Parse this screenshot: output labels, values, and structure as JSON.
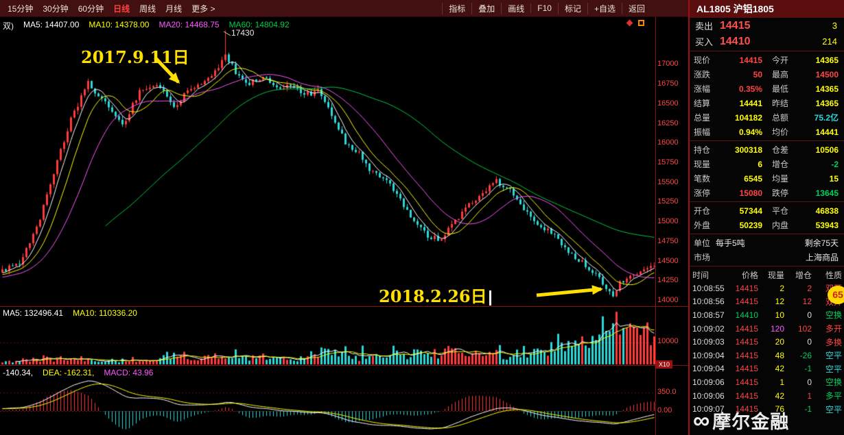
{
  "toolbar": {
    "timeframes": [
      {
        "label": "15分钟",
        "active": false
      },
      {
        "label": "30分钟",
        "active": false
      },
      {
        "label": "60分钟",
        "active": false
      },
      {
        "label": "日线",
        "active": true
      },
      {
        "label": "周线",
        "active": false
      },
      {
        "label": "月线",
        "active": false
      },
      {
        "label": "更多 >",
        "active": false
      }
    ],
    "actions": [
      "指标",
      "叠加",
      "画线",
      "F10",
      "标记",
      "+自选",
      "返回"
    ]
  },
  "main_chart": {
    "period_prefix": "双)",
    "ma_labels": [
      {
        "text": "MA5: 14407.00",
        "color": "#ffffff"
      },
      {
        "text": "MA10: 14378.00",
        "color": "#ffff00"
      },
      {
        "text": "MA20: 14468.75",
        "color": "#ff57ff"
      },
      {
        "text": "MA60: 14804.92",
        "color": "#00cc44"
      }
    ],
    "peak_label": "17430",
    "annotation_1": "2017.9.11日",
    "annotation_2": "2018.2.26日",
    "y_axis_labels": [
      "17000",
      "16750",
      "16500",
      "16250",
      "16000",
      "15750",
      "15500",
      "15250",
      "15000",
      "14750",
      "14500",
      "14250",
      "14000"
    ]
  },
  "volume_pane": {
    "ma_labels": [
      {
        "text": "MA5: 132496.41",
        "color": "#ffffff"
      },
      {
        "text": "MA10: 110336.20",
        "color": "#ffff00"
      }
    ],
    "axis_label": "10000",
    "multiplier_label": "X10"
  },
  "macd_pane": {
    "labels": [
      {
        "text": "-140.34,",
        "color": "#ffffff"
      },
      {
        "text": "DEA: -162.31,",
        "color": "#ffff00"
      },
      {
        "text": "MACD: 43.96",
        "color": "#ff57ff"
      }
    ],
    "axis_labels": [
      "350.0",
      "0.00"
    ]
  },
  "chart_data": {
    "type": "candlestick",
    "symbol": "AL1805",
    "period": "日线",
    "visible_candles": 191,
    "price_axis_range": [
      13900,
      17600
    ],
    "close_anchors": [
      [
        0,
        14350
      ],
      [
        5,
        14450
      ],
      [
        10,
        14900
      ],
      [
        15,
        15600
      ],
      [
        20,
        16300
      ],
      [
        25,
        16750
      ],
      [
        30,
        16500
      ],
      [
        35,
        16200
      ],
      [
        40,
        16650
      ],
      [
        45,
        16750
      ],
      [
        50,
        16450
      ],
      [
        55,
        16700
      ],
      [
        60,
        16800
      ],
      [
        65,
        17100
      ],
      [
        68,
        16900
      ],
      [
        72,
        16750
      ],
      [
        76,
        16850
      ],
      [
        80,
        16700
      ],
      [
        84,
        16750
      ],
      [
        88,
        16600
      ],
      [
        92,
        16650
      ],
      [
        96,
        16350
      ],
      [
        100,
        16000
      ],
      [
        104,
        15850
      ],
      [
        108,
        15600
      ],
      [
        112,
        15500
      ],
      [
        116,
        15250
      ],
      [
        120,
        15000
      ],
      [
        124,
        14800
      ],
      [
        128,
        14750
      ],
      [
        132,
        15000
      ],
      [
        136,
        15200
      ],
      [
        140,
        15350
      ],
      [
        144,
        15500
      ],
      [
        148,
        15400
      ],
      [
        152,
        15150
      ],
      [
        156,
        14950
      ],
      [
        160,
        14850
      ],
      [
        164,
        14650
      ],
      [
        168,
        14500
      ],
      [
        172,
        14350
      ],
      [
        176,
        14150
      ],
      [
        178,
        14050
      ],
      [
        180,
        14200
      ],
      [
        184,
        14300
      ],
      [
        188,
        14380
      ],
      [
        190,
        14415
      ]
    ],
    "peak_index": 65,
    "peak_high": 17430,
    "last_close": 14415,
    "volume_axis_max": 160000
  },
  "quote_panel": {
    "title": "AL1805 沪铝1805",
    "ask": {
      "label": "卖出",
      "price": "14415",
      "qty": "3"
    },
    "bid": {
      "label": "买入",
      "price": "14410",
      "qty": "214"
    },
    "stat_groups": [
      [
        [
          [
            "现价",
            "14415",
            "r"
          ],
          [
            "今开",
            "14365",
            "y"
          ]
        ],
        [
          [
            "涨跌",
            "50",
            "r"
          ],
          [
            "最高",
            "14500",
            "r"
          ]
        ],
        [
          [
            "涨幅",
            "0.35%",
            "r"
          ],
          [
            "最低",
            "14365",
            "y"
          ]
        ],
        [
          [
            "结算",
            "14441",
            "y"
          ],
          [
            "昨结",
            "14365",
            "y"
          ]
        ],
        [
          [
            "总量",
            "104182",
            "y"
          ],
          [
            "总额",
            "75.2亿",
            "c"
          ]
        ],
        [
          [
            "振幅",
            "0.94%",
            "y"
          ],
          [
            "均价",
            "14441",
            "y"
          ]
        ]
      ],
      [
        [
          [
            "持仓",
            "300318",
            "y"
          ],
          [
            "仓差",
            "10506",
            "y"
          ]
        ],
        [
          [
            "现量",
            "6",
            "y"
          ],
          [
            "增仓",
            "-2",
            "g"
          ]
        ],
        [
          [
            "笔数",
            "6545",
            "y"
          ],
          [
            "均量",
            "15",
            "y"
          ]
        ],
        [
          [
            "涨停",
            "15080",
            "r"
          ],
          [
            "跌停",
            "13645",
            "g"
          ]
        ]
      ],
      [
        [
          [
            "开仓",
            "57344",
            "y"
          ],
          [
            "平仓",
            "46838",
            "y"
          ]
        ],
        [
          [
            "外盘",
            "50239",
            "y"
          ],
          [
            "内盘",
            "53943",
            "y"
          ]
        ]
      ]
    ],
    "info_rows": [
      {
        "label": "单位",
        "left_value": "每手5吨",
        "right_value": "剩余75天"
      },
      {
        "label": "市场",
        "left_value": "",
        "right_value": "上海商品"
      }
    ],
    "tick_table": {
      "headers": [
        "时间",
        "价格",
        "现量",
        "增仓",
        "性质"
      ],
      "rows": [
        [
          [
            "10:08:55",
            "w"
          ],
          [
            "14415",
            "r"
          ],
          [
            "2",
            "y"
          ],
          [
            "2",
            "r"
          ],
          [
            "双开",
            "r"
          ]
        ],
        [
          [
            "10:08:56",
            "w"
          ],
          [
            "14415",
            "r"
          ],
          [
            "12",
            "y"
          ],
          [
            "12",
            "r"
          ],
          [
            "双开",
            "r"
          ]
        ],
        [
          [
            "10:08:57",
            "w"
          ],
          [
            "14410",
            "g"
          ],
          [
            "10",
            "y"
          ],
          [
            "0",
            "w"
          ],
          [
            "空换",
            "g"
          ]
        ],
        [
          [
            "10:09:02",
            "w"
          ],
          [
            "14415",
            "r"
          ],
          [
            "120",
            "m"
          ],
          [
            "102",
            "r"
          ],
          [
            "多开",
            "r"
          ]
        ],
        [
          [
            "10:09:03",
            "w"
          ],
          [
            "14415",
            "r"
          ],
          [
            "20",
            "y"
          ],
          [
            "0",
            "w"
          ],
          [
            "多换",
            "r"
          ]
        ],
        [
          [
            "10:09:04",
            "w"
          ],
          [
            "14415",
            "r"
          ],
          [
            "48",
            "y"
          ],
          [
            "-26",
            "g"
          ],
          [
            "空平",
            "c"
          ]
        ],
        [
          [
            "10:09:04",
            "w"
          ],
          [
            "14415",
            "r"
          ],
          [
            "42",
            "y"
          ],
          [
            "-1",
            "g"
          ],
          [
            "空平",
            "c"
          ]
        ],
        [
          [
            "10:09:06",
            "w"
          ],
          [
            "14415",
            "r"
          ],
          [
            "1",
            "y"
          ],
          [
            "0",
            "w"
          ],
          [
            "空换",
            "g"
          ]
        ],
        [
          [
            "10:09:06",
            "w"
          ],
          [
            "14415",
            "r"
          ],
          [
            "42",
            "y"
          ],
          [
            "1",
            "r"
          ],
          [
            "多平",
            "g"
          ]
        ],
        [
          [
            "10:09:07",
            "w"
          ],
          [
            "14415",
            "r"
          ],
          [
            "76",
            "y"
          ],
          [
            "-1",
            "g"
          ],
          [
            "空平",
            "c"
          ]
        ]
      ]
    },
    "badge": "65",
    "logo_text": "摩尔金融"
  },
  "colors": {
    "up": "#ff3b3b",
    "down": "#2bd8d8",
    "ma5": "#ffffff",
    "ma10": "#ffff00",
    "ma20": "#ff57ff",
    "ma60": "#00cc44",
    "axis_text": "#ff4545",
    "annotation": "#ffe000"
  }
}
